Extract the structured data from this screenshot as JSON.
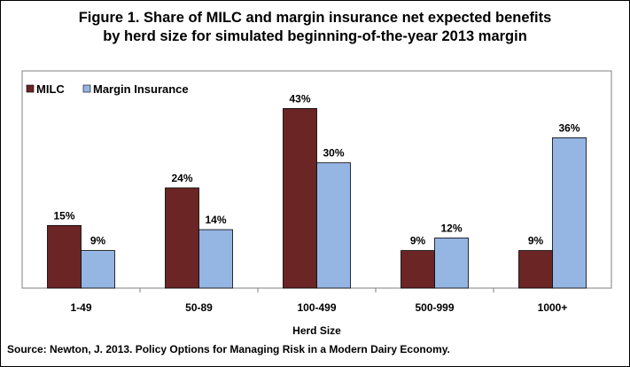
{
  "chart_data": {
    "type": "bar",
    "title_line1": "Figure 1. Share of MILC and margin insurance  net expected benefits",
    "title_line2": "by herd size for simulated  beginning-of-the-year 2013 margin",
    "xlabel": "Herd Size",
    "ylabel": "",
    "categories": [
      "1-49",
      "50-89",
      "100-499",
      "500-999",
      "1000+"
    ],
    "series": [
      {
        "name": "MILC",
        "values": [
          15,
          24,
          43,
          9,
          9
        ],
        "labels": [
          "15%",
          "24%",
          "43%",
          "9%",
          "9%"
        ],
        "color": "#6B2525"
      },
      {
        "name": "Margin Insurance",
        "values": [
          9,
          14,
          30,
          12,
          36
        ],
        "labels": [
          "9%",
          "14%",
          "30%",
          "12%",
          "36%"
        ],
        "color": "#95B5E3"
      }
    ],
    "ylim": [
      0,
      45
    ],
    "grid": false,
    "legend_position": "top-left",
    "source": "Source: Newton, J. 2013. Policy Options for Managing Risk in a Modern Dairy Economy."
  }
}
